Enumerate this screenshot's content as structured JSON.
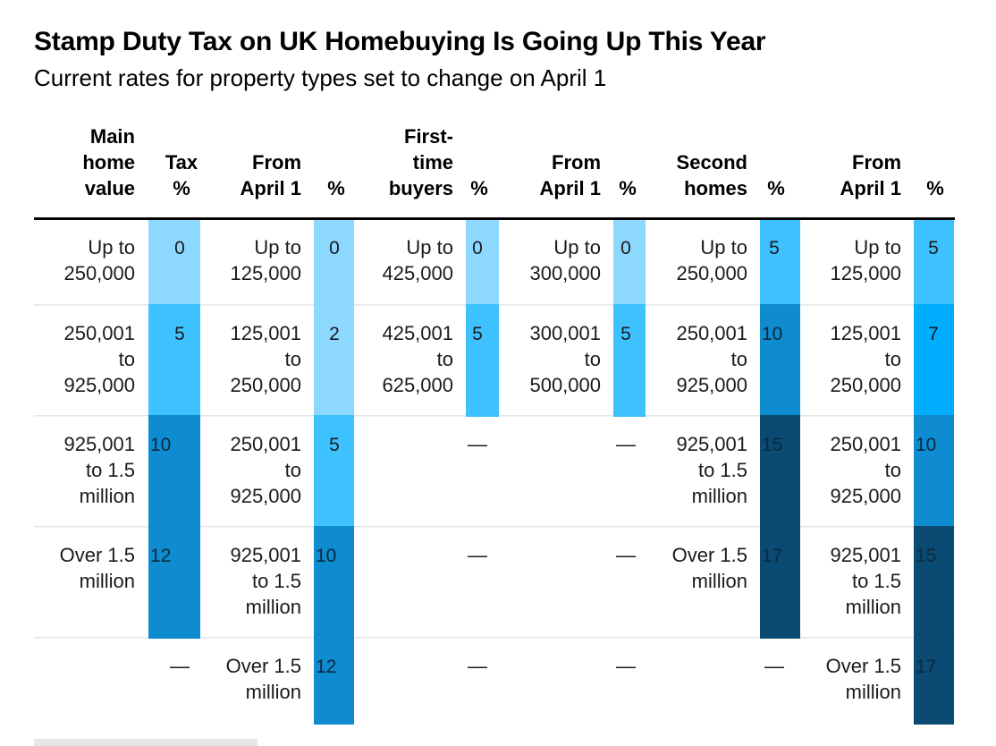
{
  "header": {
    "title": "Stamp Duty Tax on UK Homebuying Is Going Up This Year",
    "subtitle": "Current rates for property types set to change on April 1"
  },
  "chart_data": {
    "type": "table",
    "title": "Stamp Duty Tax on UK Homebuying Is Going Up This Year",
    "subtitle": "Current rates for property types set to change on April 1",
    "colors": {
      "rate_0": "#8dd8ff",
      "rate_2": "#8dd8ff",
      "rate_5": "#3ec2ff",
      "rate_7": "#00adff",
      "rate_10": "#0f8bd0",
      "rate_12": "#0f8bd0",
      "rate_15": "#0b4a72",
      "rate_17": "#0b4a72",
      "text_on_light": "#1a1a1a",
      "text_on_dark": "#0a2a3f",
      "header_rule": "#000000",
      "row_rule": "#e6e6e6"
    },
    "dash": "—",
    "groups": [
      {
        "name": "main-home",
        "value_header": [
          "Main",
          "home",
          "value"
        ],
        "rate_header": [
          "Tax",
          "%"
        ],
        "rows": [
          {
            "value": [
              "Up to",
              "250,000"
            ],
            "rate": 0
          },
          {
            "value": [
              "250,001",
              "to",
              "925,000"
            ],
            "rate": 5
          },
          {
            "value": [
              "925,001",
              "to 1.5",
              "million"
            ],
            "rate": 10
          },
          {
            "value": [
              "Over 1.5",
              "million"
            ],
            "rate": 12
          },
          {
            "value": [],
            "rate": null
          }
        ]
      },
      {
        "name": "main-home-april",
        "value_header": [
          "From",
          "April 1"
        ],
        "rate_header": [
          "%"
        ],
        "rows": [
          {
            "value": [
              "Up to",
              "125,000"
            ],
            "rate": 0
          },
          {
            "value": [
              "125,001",
              "to",
              "250,000"
            ],
            "rate": 2
          },
          {
            "value": [
              "250,001",
              "to",
              "925,000"
            ],
            "rate": 5
          },
          {
            "value": [
              "925,001",
              "to 1.5",
              "million"
            ],
            "rate": 10
          },
          {
            "value": [
              "Over 1.5",
              "million"
            ],
            "rate": 12
          }
        ]
      },
      {
        "name": "first-time",
        "value_header": [
          "First-",
          "time",
          "buyers"
        ],
        "rate_header": [
          "%"
        ],
        "rows": [
          {
            "value": [
              "Up to",
              "425,000"
            ],
            "rate": 0
          },
          {
            "value": [
              "425,001",
              "to",
              "625,000"
            ],
            "rate": 5
          },
          {
            "value": [],
            "rate": null
          },
          {
            "value": [],
            "rate": null
          },
          {
            "value": [],
            "rate": null
          }
        ]
      },
      {
        "name": "first-time-april",
        "value_header": [
          "From",
          "April 1"
        ],
        "rate_header": [
          "%"
        ],
        "rows": [
          {
            "value": [
              "Up to",
              "300,000"
            ],
            "rate": 0
          },
          {
            "value": [
              "300,001",
              "to",
              "500,000"
            ],
            "rate": 5
          },
          {
            "value": [],
            "rate": null
          },
          {
            "value": [],
            "rate": null
          },
          {
            "value": [],
            "rate": null
          }
        ]
      },
      {
        "name": "second-homes",
        "value_header": [
          "Second",
          "homes"
        ],
        "rate_header": [
          "%"
        ],
        "rows": [
          {
            "value": [
              "Up to",
              "250,000"
            ],
            "rate": 5
          },
          {
            "value": [
              "250,001",
              "to",
              "925,000"
            ],
            "rate": 10
          },
          {
            "value": [
              "925,001",
              "to 1.5",
              "million"
            ],
            "rate": 15
          },
          {
            "value": [
              "Over 1.5",
              "million"
            ],
            "rate": 17
          },
          {
            "value": [],
            "rate": null
          }
        ]
      },
      {
        "name": "second-homes-april",
        "value_header": [
          "From",
          "April 1"
        ],
        "rate_header": [
          "%"
        ],
        "rows": [
          {
            "value": [
              "Up to",
              "125,000"
            ],
            "rate": 5
          },
          {
            "value": [
              "125,001",
              "to",
              "250,000"
            ],
            "rate": 7
          },
          {
            "value": [
              "250,001",
              "to",
              "925,000"
            ],
            "rate": 10
          },
          {
            "value": [
              "925,001",
              "to 1.5",
              "million"
            ],
            "rate": 15
          },
          {
            "value": [
              "Over 1.5",
              "million"
            ],
            "rate": 17
          }
        ]
      }
    ]
  }
}
